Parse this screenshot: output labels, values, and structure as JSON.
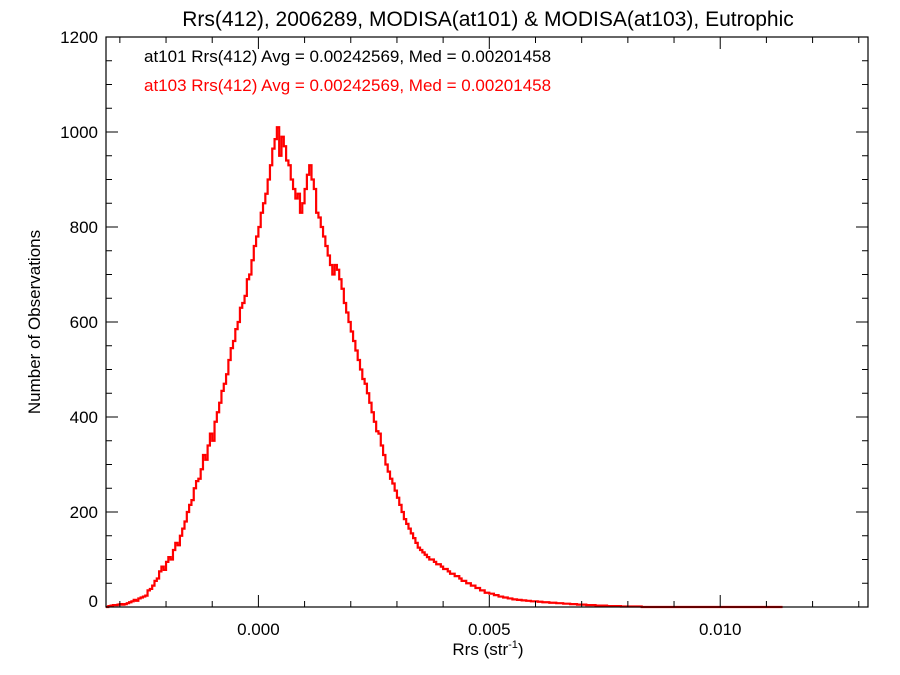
{
  "chart_data": {
    "type": "histogram",
    "title": "Rrs(412), 2006289, MODISA(at101) & MODISA(at103), Eutrophic",
    "xlabel": "Rrs (str",
    "xlabel_sup": "-1",
    "xlabel_close": ")",
    "ylabel": "Number of Observations",
    "xlim": [
      -0.0033,
      0.0132
    ],
    "ylim": [
      0,
      1200
    ],
    "xticks": [
      0.0,
      0.005,
      0.01
    ],
    "xtick_labels": [
      "0.000",
      "0.005",
      "0.010"
    ],
    "yticks": [
      0,
      200,
      400,
      600,
      800,
      1000,
      1200
    ],
    "ytick_labels": [
      "0",
      "200",
      "400",
      "600",
      "800",
      "1000",
      "1200"
    ],
    "grid": false,
    "annotations": [
      {
        "text": "at101 Rrs(412) Avg = 0.00242569, Med = 0.00201458",
        "color": "#000000"
      },
      {
        "text": "at103 Rrs(412) Avg = 0.00242569, Med = 0.00201458",
        "color": "#ff0000"
      }
    ],
    "series": [
      {
        "color": "#ff0000",
        "bin_start": -0.0033,
        "bin_width": 5e-05,
        "values": [
          0,
          2,
          3,
          4,
          4,
          5,
          6,
          5,
          6,
          8,
          10,
          12,
          15,
          13,
          18,
          20,
          22,
          24,
          35,
          38,
          45,
          55,
          60,
          75,
          85,
          78,
          95,
          105,
          100,
          120,
          135,
          130,
          150,
          165,
          180,
          200,
          215,
          225,
          250,
          265,
          270,
          290,
          320,
          310,
          340,
          365,
          350,
          390,
          410,
          430,
          455,
          470,
          490,
          520,
          545,
          560,
          585,
          600,
          630,
          640,
          655,
          690,
          700,
          730,
          760,
          780,
          800,
          830,
          850,
          870,
          900,
          930,
          965,
          985,
          1010,
          950,
          990,
          970,
          940,
          930,
          900,
          880,
          860,
          870,
          830,
          850,
          880,
          910,
          930,
          900,
          880,
          830,
          820,
          800,
          780,
          760,
          740,
          720,
          700,
          720,
          710,
          690,
          670,
          640,
          620,
          600,
          580,
          560,
          540,
          520,
          500,
          480,
          470,
          450,
          430,
          410,
          390,
          370,
          365,
          340,
          320,
          300,
          285,
          270,
          260,
          245,
          230,
          215,
          200,
          185,
          175,
          165,
          155,
          145,
          135,
          125,
          120,
          115,
          110,
          105,
          100,
          100,
          95,
          90,
          90,
          85,
          80,
          80,
          75,
          70,
          70,
          65,
          65,
          60,
          55,
          55,
          50,
          50,
          45,
          45,
          40,
          40,
          35,
          35,
          30,
          30,
          28,
          28,
          25,
          25,
          22,
          22,
          20,
          20,
          18,
          18,
          16,
          16,
          15,
          15,
          14,
          14,
          13,
          13,
          12,
          12,
          12,
          11,
          11,
          10,
          10,
          10,
          9,
          9,
          9,
          8,
          8,
          8,
          7,
          7,
          7,
          6,
          6,
          6,
          5,
          5,
          5,
          5,
          4,
          4,
          4,
          4,
          3,
          3,
          3,
          3,
          3,
          2,
          2,
          2,
          2,
          2,
          2,
          1,
          1,
          1,
          1,
          1,
          1,
          1,
          1,
          1,
          0,
          0,
          0,
          0,
          0,
          0,
          0,
          0,
          0,
          0,
          0,
          0,
          0,
          0,
          0,
          0,
          0,
          0,
          0,
          0,
          0,
          0,
          0,
          0,
          0,
          0,
          0,
          0,
          0,
          0,
          0,
          0,
          0,
          0,
          0,
          0,
          0,
          0,
          0,
          0,
          0,
          0,
          0,
          0,
          0,
          0,
          0,
          0,
          0,
          0,
          0,
          0,
          0,
          0,
          0,
          0,
          0,
          0,
          0,
          0,
          0
        ]
      }
    ]
  }
}
